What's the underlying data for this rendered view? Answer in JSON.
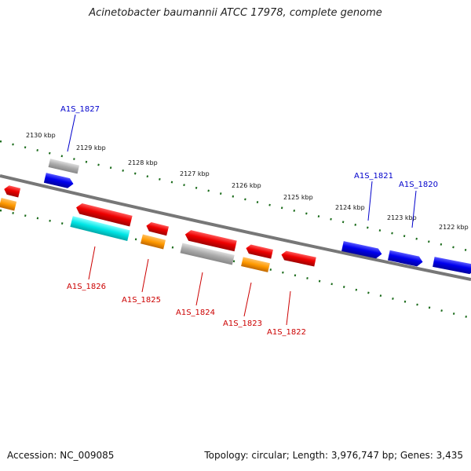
{
  "header": {
    "title": "Acinetobacter baumannii ATCC 17978, complete genome"
  },
  "footer": {
    "accession": "Accession: NC_009085",
    "stats": "Topology: circular; Length: 3,976,747 bp; Genes: 3,435"
  },
  "colors": {
    "backbone": "#777777",
    "dots": "#1a6b1a",
    "forward_gene": "#0000ee",
    "reverse_gene": "#ee0000",
    "rna": "#ff9900",
    "other": "#aaaaaa",
    "highlight": "#00e5e5"
  },
  "ticks": [
    "2130 kbp",
    "2129 kbp",
    "2128 kbp",
    "2127 kbp",
    "2126 kbp",
    "2125 kbp",
    "2124 kbp",
    "2123 kbp",
    "2122 kbp"
  ],
  "forward_labels": [
    "A1S_1827",
    "A1S_1821",
    "A1S_1820"
  ],
  "reverse_labels": [
    "A1S_1826",
    "A1S_1825",
    "A1S_1824",
    "A1S_1823",
    "A1S_1822"
  ]
}
